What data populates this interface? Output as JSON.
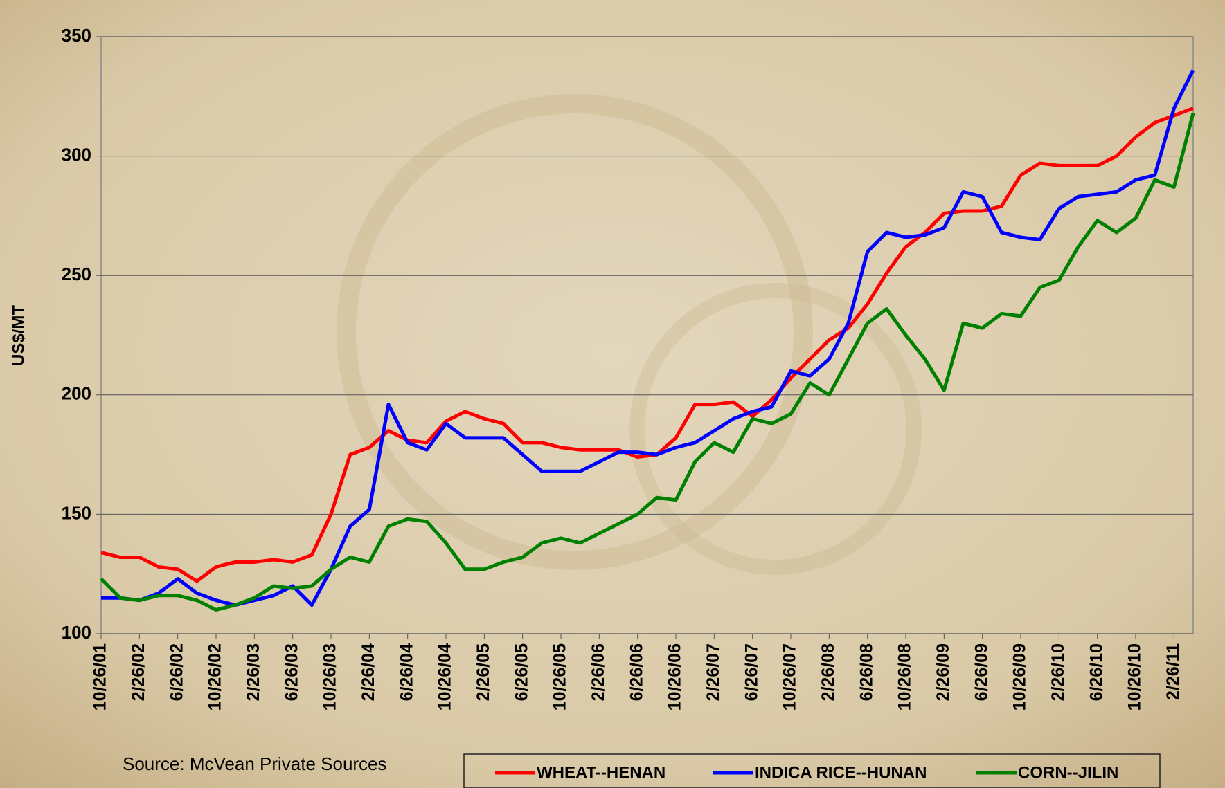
{
  "chart_data": {
    "type": "line",
    "y_label": "US$/MT",
    "source": "Source: McVean Private Sources",
    "categories": [
      "10/26/01",
      null,
      "2/26/02",
      null,
      "6/26/02",
      null,
      "10/26/02",
      null,
      "2/26/03",
      null,
      "6/26/03",
      null,
      "10/26/03",
      null,
      "2/26/04",
      null,
      "6/26/04",
      null,
      "10/26/04",
      null,
      "2/26/05",
      null,
      "6/26/05",
      null,
      "10/26/05",
      null,
      "2/26/06",
      null,
      "6/26/06",
      null,
      "10/26/06",
      null,
      "2/26/07",
      null,
      "6/26/07",
      null,
      "10/26/07",
      null,
      "2/26/08",
      null,
      "6/26/08",
      null,
      "10/26/08",
      null,
      "2/26/09",
      null,
      "6/26/09",
      null,
      "10/26/09",
      null,
      "2/26/10",
      null,
      "6/26/10",
      null,
      "10/26/10",
      null,
      "2/26/11",
      null
    ],
    "series": [
      {
        "name": "WHEAT--HENAN",
        "color": "#ff0000",
        "values": [
          134,
          132,
          132,
          128,
          127,
          122,
          128,
          130,
          130,
          131,
          130,
          133,
          150,
          175,
          178,
          185,
          181,
          180,
          189,
          193,
          190,
          188,
          180,
          180,
          178,
          177,
          177,
          177,
          174,
          175,
          182,
          196,
          196,
          197,
          191,
          198,
          207,
          215,
          223,
          228,
          238,
          251,
          262,
          268,
          276,
          277,
          277,
          279,
          292,
          297,
          296,
          296,
          296,
          300,
          308,
          314,
          317,
          320
        ]
      },
      {
        "name": "INDICA RICE--HUNAN",
        "color": "#0000ff",
        "values": [
          115,
          115,
          114,
          117,
          123,
          117,
          114,
          112,
          114,
          116,
          120,
          112,
          127,
          145,
          152,
          196,
          180,
          177,
          188,
          182,
          182,
          182,
          175,
          168,
          168,
          168,
          172,
          176,
          176,
          175,
          178,
          180,
          185,
          190,
          193,
          195,
          210,
          208,
          215,
          230,
          260,
          268,
          266,
          267,
          270,
          285,
          283,
          268,
          266,
          265,
          278,
          283,
          284,
          285,
          290,
          292,
          320,
          336
        ]
      },
      {
        "name": "CORN--JILIN",
        "color": "#008000",
        "values": [
          123,
          115,
          114,
          116,
          116,
          114,
          110,
          112,
          115,
          120,
          119,
          120,
          127,
          132,
          130,
          145,
          148,
          147,
          138,
          127,
          127,
          130,
          132,
          138,
          140,
          138,
          142,
          146,
          150,
          157,
          156,
          172,
          180,
          176,
          190,
          188,
          192,
          205,
          200,
          215,
          230,
          236,
          225,
          215,
          202,
          230,
          228,
          234,
          233,
          245,
          248,
          262,
          273,
          268,
          274,
          290,
          287,
          318
        ]
      }
    ],
    "ylim": [
      100,
      350
    ],
    "yticks": [
      100,
      150,
      200,
      250,
      300,
      350
    ],
    "grid": true,
    "legend": "bottom"
  }
}
